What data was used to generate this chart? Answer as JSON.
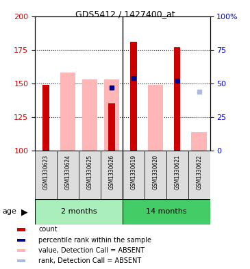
{
  "title": "GDS5412 / 1427400_at",
  "samples": [
    "GSM1330623",
    "GSM1330624",
    "GSM1330625",
    "GSM1330626",
    "GSM1330619",
    "GSM1330620",
    "GSM1330621",
    "GSM1330622"
  ],
  "ylim_left": [
    100,
    200
  ],
  "ylim_right": [
    0,
    100
  ],
  "yticks_left": [
    100,
    125,
    150,
    175,
    200
  ],
  "yticks_right": [
    0,
    25,
    50,
    75,
    100
  ],
  "ytick_labels_right": [
    "0",
    "25",
    "50",
    "75",
    "100%"
  ],
  "red_bars": {
    "GSM1330623": 149,
    "GSM1330624": null,
    "GSM1330625": null,
    "GSM1330626": 135,
    "GSM1330619": 181,
    "GSM1330620": null,
    "GSM1330621": 177,
    "GSM1330622": null
  },
  "pink_bars": {
    "GSM1330623": null,
    "GSM1330624": 158,
    "GSM1330625": 153,
    "GSM1330626": 153,
    "GSM1330619": null,
    "GSM1330620": 149,
    "GSM1330621": null,
    "GSM1330622": 114
  },
  "blue_squares": {
    "GSM1330626": 147,
    "GSM1330619": 154,
    "GSM1330621": 152
  },
  "light_blue_squares": {
    "GSM1330622": 144
  },
  "red_color": "#CC0000",
  "pink_color": "#FFB6B6",
  "blue_color": "#00008B",
  "light_blue_color": "#AABBDD",
  "label_color_left": "#CC0000",
  "label_color_right": "#0000CC",
  "group1_color": "#AAEEBB",
  "group2_color": "#44CC66",
  "legend_items": [
    {
      "label": "count",
      "color": "#CC0000"
    },
    {
      "label": "percentile rank within the sample",
      "color": "#00008B"
    },
    {
      "label": "value, Detection Call = ABSENT",
      "color": "#FFB6B6"
    },
    {
      "label": "rank, Detection Call = ABSENT",
      "color": "#AABBDD"
    }
  ]
}
